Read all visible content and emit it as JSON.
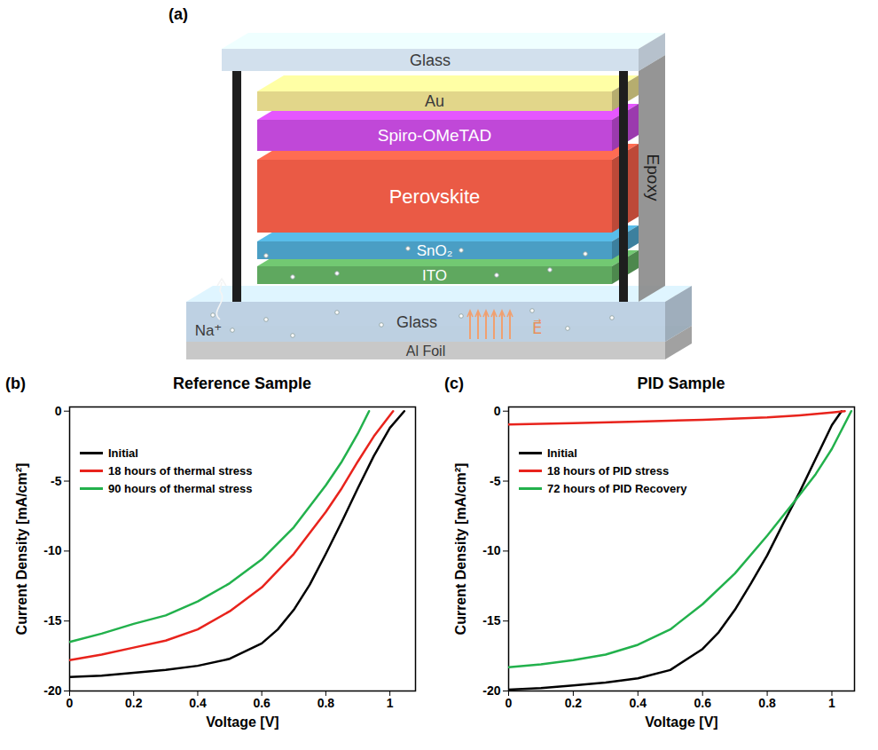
{
  "diagram": {
    "panel": "(a)",
    "layers": [
      {
        "label": "Glass",
        "color": "#c4d6e8"
      },
      {
        "label": "Au",
        "color": "#e2d68a"
      },
      {
        "label": "Spiro-OMeTAD",
        "color": "#c048d8"
      },
      {
        "label": "Perovskite",
        "color": "#ea5a45"
      },
      {
        "label": "SnO₂",
        "color": "#4a9ec4"
      },
      {
        "label": "ITO",
        "color": "#5fa85f"
      },
      {
        "label": "Glass",
        "color": "#b8cde0"
      },
      {
        "label": "Al Foil",
        "color": "#c8c8c8"
      }
    ],
    "side_label": "Epoxy",
    "ion_label": "Na⁺",
    "field_label": "E⃗"
  },
  "chart_data": [
    {
      "type": "line",
      "panel": "(b)",
      "title": "Reference Sample",
      "x_label": "Voltage [V]",
      "y_label": "Current Density [mA/cm²]",
      "xlim": [
        0,
        1.08
      ],
      "ylim": [
        -20,
        0.3
      ],
      "xticks": [
        0,
        0.2,
        0.4,
        0.6,
        0.8,
        1
      ],
      "yticks": [
        -20,
        -15,
        -10,
        -5,
        0
      ],
      "legend": "top-left",
      "series": [
        {
          "name": "Initial",
          "color": "#000000",
          "x": [
            0,
            0.1,
            0.2,
            0.3,
            0.4,
            0.5,
            0.6,
            0.65,
            0.7,
            0.75,
            0.8,
            0.85,
            0.9,
            0.95,
            1.0,
            1.045
          ],
          "values": [
            -19.0,
            -18.9,
            -18.7,
            -18.5,
            -18.2,
            -17.7,
            -16.6,
            -15.6,
            -14.2,
            -12.4,
            -10.2,
            -7.9,
            -5.5,
            -3.2,
            -1.2,
            0
          ]
        },
        {
          "name": "18 hours of thermal stress",
          "color": "#e8231c",
          "x": [
            0,
            0.1,
            0.2,
            0.3,
            0.4,
            0.5,
            0.6,
            0.7,
            0.8,
            0.85,
            0.9,
            0.95,
            1.01
          ],
          "values": [
            -17.8,
            -17.4,
            -16.9,
            -16.4,
            -15.6,
            -14.3,
            -12.6,
            -10.2,
            -7.2,
            -5.5,
            -3.6,
            -1.8,
            0
          ]
        },
        {
          "name": "90 hours of thermal stress",
          "color": "#22b14c",
          "x": [
            0,
            0.1,
            0.2,
            0.3,
            0.4,
            0.5,
            0.6,
            0.7,
            0.8,
            0.85,
            0.9,
            0.935
          ],
          "values": [
            -16.5,
            -15.9,
            -15.2,
            -14.6,
            -13.6,
            -12.3,
            -10.6,
            -8.3,
            -5.3,
            -3.6,
            -1.6,
            0
          ]
        }
      ]
    },
    {
      "type": "line",
      "panel": "(c)",
      "title": "PID Sample",
      "x_label": "Voltage [V]",
      "y_label": "Current Density [mA/cm²]",
      "xlim": [
        0,
        1.07
      ],
      "ylim": [
        -20,
        0.3
      ],
      "xticks": [
        0,
        0.2,
        0.4,
        0.6,
        0.8,
        1
      ],
      "yticks": [
        -20,
        -15,
        -10,
        -5,
        0
      ],
      "legend": "top-left",
      "series": [
        {
          "name": "Initial",
          "color": "#000000",
          "x": [
            0,
            0.1,
            0.2,
            0.3,
            0.4,
            0.5,
            0.6,
            0.65,
            0.7,
            0.75,
            0.8,
            0.85,
            0.9,
            0.95,
            1.0,
            1.03
          ],
          "values": [
            -19.9,
            -19.8,
            -19.6,
            -19.4,
            -19.1,
            -18.5,
            -17.0,
            -15.8,
            -14.2,
            -12.3,
            -10.3,
            -8.0,
            -5.8,
            -3.4,
            -1.0,
            0
          ]
        },
        {
          "name": "18 hours of PID stress",
          "color": "#e8231c",
          "x": [
            0,
            0.2,
            0.4,
            0.6,
            0.8,
            0.9,
            1.0,
            1.04
          ],
          "values": [
            -0.95,
            -0.85,
            -0.75,
            -0.62,
            -0.45,
            -0.3,
            -0.1,
            0
          ]
        },
        {
          "name": "72 hours of PID Recovery",
          "color": "#22b14c",
          "x": [
            0,
            0.1,
            0.2,
            0.3,
            0.4,
            0.5,
            0.6,
            0.7,
            0.8,
            0.9,
            0.95,
            1.0,
            1.06
          ],
          "values": [
            -18.3,
            -18.1,
            -17.8,
            -17.4,
            -16.7,
            -15.6,
            -13.8,
            -11.6,
            -8.9,
            -6.0,
            -4.5,
            -2.7,
            0
          ]
        }
      ]
    }
  ]
}
